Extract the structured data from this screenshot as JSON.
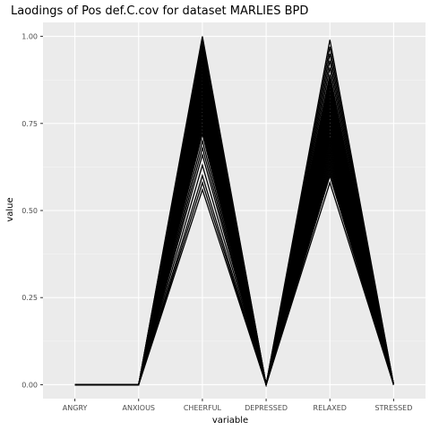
{
  "chart_data": {
    "type": "line",
    "title": "Laodings of Pos def.C.cov for dataset MARLIES BPD",
    "xlabel": "variable",
    "ylabel": "value",
    "categories": [
      "ANGRY",
      "ANXIOUS",
      "CHEERFUL",
      "DEPRESSED",
      "RELAXED",
      "STRESSED"
    ],
    "ylim": [
      -0.04,
      1.04
    ],
    "yticks": [
      0.0,
      0.25,
      0.5,
      0.75,
      1.0
    ],
    "ytick_labels": [
      "0.00",
      "0.25",
      "0.50",
      "0.75",
      "1.00"
    ],
    "grid": true,
    "legend": "none",
    "colors": {
      "panel": "#ebebeb",
      "grid_major": "#ffffff",
      "grid_minor": "#f5f5f5",
      "line": "#000000",
      "tick_text": "#4d4d4d"
    },
    "series": [
      {
        "values": [
          0,
          0,
          1.0,
          0,
          0.99,
          0
        ]
      },
      {
        "values": [
          0,
          0,
          0.99,
          0,
          0.97,
          0
        ]
      },
      {
        "values": [
          0,
          0,
          0.98,
          0,
          0.95,
          0
        ]
      },
      {
        "values": [
          0,
          0,
          0.97,
          0,
          0.93,
          0
        ]
      },
      {
        "values": [
          0,
          0,
          0.96,
          0,
          0.91,
          0
        ]
      },
      {
        "values": [
          0,
          0,
          0.95,
          0,
          0.89,
          0
        ]
      },
      {
        "values": [
          0,
          0,
          0.94,
          0,
          0.88,
          0
        ]
      },
      {
        "values": [
          0,
          0,
          0.93,
          0,
          0.87,
          0
        ]
      },
      {
        "values": [
          0,
          0,
          0.92,
          0,
          0.86,
          0
        ]
      },
      {
        "values": [
          0,
          0,
          0.91,
          0,
          0.85,
          0
        ]
      },
      {
        "values": [
          0,
          0,
          0.9,
          0,
          0.84,
          0
        ]
      },
      {
        "values": [
          0,
          0,
          0.89,
          0,
          0.83,
          0
        ]
      },
      {
        "values": [
          0,
          0,
          0.88,
          0,
          0.82,
          0
        ]
      },
      {
        "values": [
          0,
          0,
          0.87,
          0,
          0.81,
          0
        ]
      },
      {
        "values": [
          0,
          0,
          0.86,
          0,
          0.8,
          0
        ]
      },
      {
        "values": [
          0,
          0,
          0.85,
          0,
          0.79,
          0
        ]
      },
      {
        "values": [
          0,
          0,
          0.84,
          0,
          0.78,
          0
        ]
      },
      {
        "values": [
          0,
          0,
          0.83,
          0,
          0.77,
          0
        ]
      },
      {
        "values": [
          0,
          0,
          0.82,
          0,
          0.76,
          0
        ]
      },
      {
        "values": [
          0,
          0,
          0.81,
          0,
          0.75,
          0
        ]
      },
      {
        "values": [
          0,
          0,
          0.8,
          0,
          0.74,
          0
        ]
      },
      {
        "values": [
          0,
          0,
          0.79,
          0,
          0.73,
          0
        ]
      },
      {
        "values": [
          0,
          0,
          0.78,
          0,
          0.72,
          0
        ]
      },
      {
        "values": [
          0,
          0,
          0.77,
          0,
          0.71,
          0
        ]
      },
      {
        "values": [
          0,
          0,
          0.76,
          0,
          0.7,
          0
        ]
      },
      {
        "values": [
          0,
          0,
          0.75,
          0,
          0.69,
          0
        ]
      },
      {
        "values": [
          0,
          0,
          0.74,
          0,
          0.68,
          0
        ]
      },
      {
        "values": [
          0,
          0,
          0.73,
          0,
          0.67,
          0
        ]
      },
      {
        "values": [
          0,
          0,
          0.72,
          0,
          0.66,
          0
        ]
      },
      {
        "values": [
          0,
          0,
          0.7,
          0,
          0.65,
          0
        ]
      },
      {
        "values": [
          0,
          0,
          0.68,
          0,
          0.64,
          0
        ]
      },
      {
        "values": [
          0,
          0,
          0.66,
          0,
          0.63,
          0
        ]
      },
      {
        "values": [
          0,
          0,
          0.63,
          0,
          0.62,
          0
        ]
      },
      {
        "values": [
          0,
          0,
          0.6,
          0,
          0.61,
          0
        ]
      },
      {
        "values": [
          0,
          0,
          0.58,
          0,
          0.6,
          0
        ]
      },
      {
        "values": [
          0,
          0,
          0.56,
          0,
          0.58,
          0
        ]
      }
    ]
  }
}
